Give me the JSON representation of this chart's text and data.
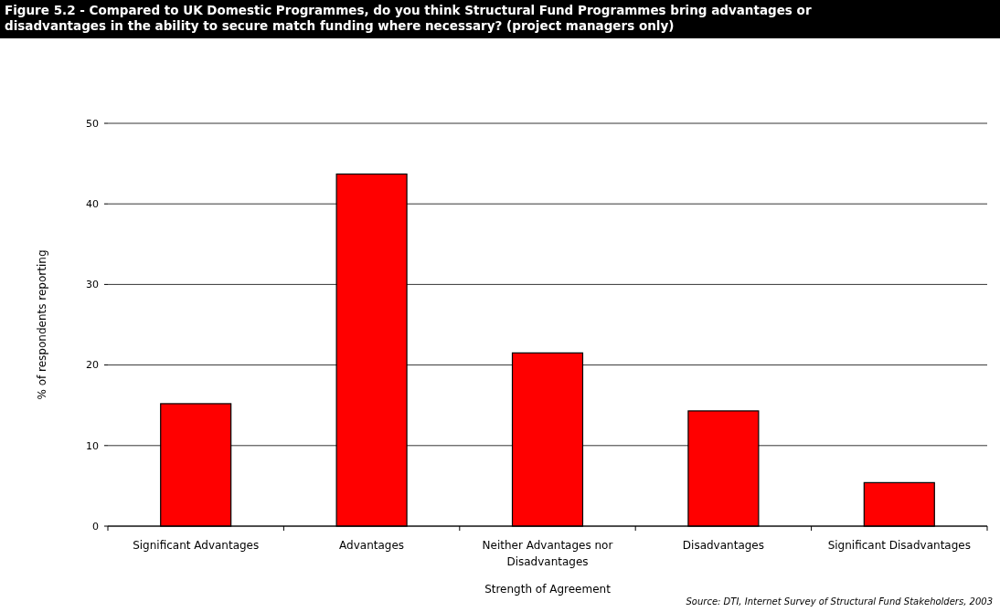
{
  "chart_data": {
    "type": "bar",
    "title": "Figure 5.2 - Compared to UK Domestic Programmes, do you think Structural Fund Programmes bring advantages or disadvantages in the ability to secure match funding where necessary? (project managers only)",
    "categories": [
      "Significant Advantages",
      "Advantages",
      "Neither Advantages nor Disadvantages",
      "Disadvantages",
      "Significant Disadvantages"
    ],
    "values": [
      15.2,
      43.7,
      21.5,
      14.3,
      5.4
    ],
    "color": "#ff0000",
    "xlabel": "Strength of Agreement",
    "ylabel": "% of respondents reporting",
    "ylim": [
      0,
      50
    ],
    "yticks": [
      0,
      10,
      20,
      30,
      40,
      50
    ],
    "grid": "y",
    "annotations": [
      "Source: DTI, Internet Survey of Structural Fund Stakeholders, 2003"
    ]
  }
}
